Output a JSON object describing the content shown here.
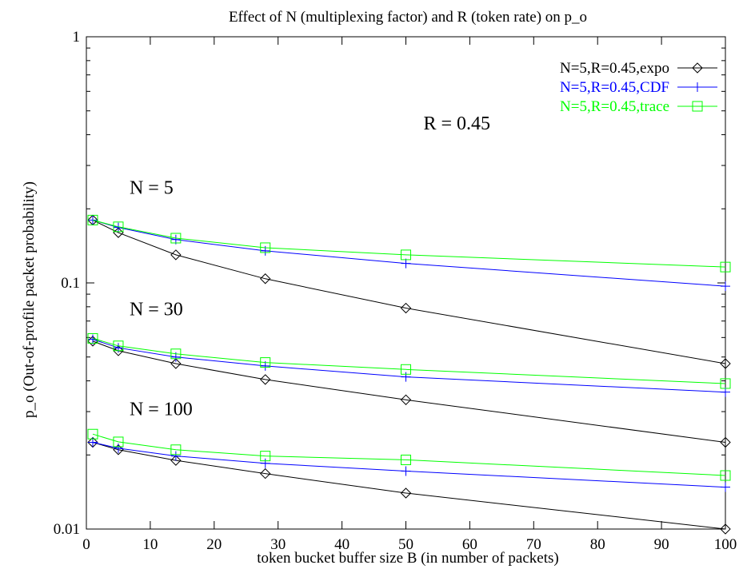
{
  "chart_data": {
    "type": "line",
    "title": "Effect of N (multiplexing factor) and R (token rate) on p_o",
    "xlabel": "token bucket buffer size B (in number of packets)",
    "ylabel": "p_o (Out-of-profile packet probability)",
    "xlim": [
      0,
      100
    ],
    "ylim": [
      0.01,
      1
    ],
    "yscale": "log",
    "xticks": [
      0,
      10,
      20,
      30,
      40,
      50,
      60,
      70,
      80,
      90,
      100
    ],
    "xtick_labels": [
      "0",
      "10",
      "20",
      "30",
      "40",
      "50",
      "60",
      "70",
      "80",
      "90",
      "100"
    ],
    "ytick_labels": [
      "0.01",
      "0.1",
      "1"
    ],
    "grid": false,
    "legend_position": "top-right",
    "legend": [
      {
        "label": "N=5,R=0.45,expo",
        "color": "#000000",
        "marker": "diamond"
      },
      {
        "label": "N=5,R=0.45,CDF",
        "color": "#0000ff",
        "marker": "plus"
      },
      {
        "label": "N=5,R=0.45,trace",
        "color": "#00ff00",
        "marker": "square"
      }
    ],
    "annotations": [
      {
        "text": "R = 0.45",
        "x": 52,
        "y": 0.42
      },
      {
        "text": "N = 5",
        "x": 6,
        "y": 0.23
      },
      {
        "text": "N = 30",
        "x": 6,
        "y": 0.074
      },
      {
        "text": "N = 100",
        "x": 6,
        "y": 0.029
      }
    ],
    "series": [
      {
        "group": "N = 5",
        "type": "expo",
        "color": "#000000",
        "marker": "diamond",
        "x": [
          1,
          5,
          14,
          28,
          50,
          100
        ],
        "y": [
          0.18,
          0.16,
          0.13,
          0.104,
          0.079,
          0.047
        ]
      },
      {
        "group": "N = 5",
        "type": "CDF",
        "color": "#0000ff",
        "marker": "plus",
        "x": [
          1,
          5,
          14,
          28,
          50,
          100
        ],
        "y": [
          0.18,
          0.168,
          0.15,
          0.135,
          0.12,
          0.097
        ]
      },
      {
        "group": "N = 5",
        "type": "trace",
        "color": "#00ff00",
        "marker": "square",
        "x": [
          1,
          5,
          14,
          28,
          50,
          100
        ],
        "y": [
          0.18,
          0.169,
          0.152,
          0.139,
          0.13,
          0.116
        ]
      },
      {
        "group": "N = 30",
        "type": "expo",
        "color": "#000000",
        "marker": "diamond",
        "x": [
          1,
          5,
          14,
          28,
          50,
          100
        ],
        "y": [
          0.058,
          0.053,
          0.047,
          0.0405,
          0.0335,
          0.0225
        ]
      },
      {
        "group": "N = 30",
        "type": "CDF",
        "color": "#0000ff",
        "marker": "plus",
        "x": [
          1,
          5,
          14,
          28,
          50,
          100
        ],
        "y": [
          0.059,
          0.0545,
          0.05,
          0.046,
          0.0415,
          0.036
        ]
      },
      {
        "group": "N = 30",
        "type": "trace",
        "color": "#00ff00",
        "marker": "square",
        "x": [
          1,
          5,
          14,
          28,
          50,
          100
        ],
        "y": [
          0.0595,
          0.0555,
          0.0515,
          0.0475,
          0.0445,
          0.039
        ]
      },
      {
        "group": "N = 100",
        "type": "expo",
        "color": "#000000",
        "marker": "diamond",
        "x": [
          1,
          5,
          14,
          28,
          50,
          100
        ],
        "y": [
          0.0225,
          0.021,
          0.019,
          0.0168,
          0.014,
          0.01
        ]
      },
      {
        "group": "N = 100",
        "type": "CDF",
        "color": "#0000ff",
        "marker": "plus",
        "x": [
          1,
          5,
          14,
          28,
          50,
          100
        ],
        "y": [
          0.0225,
          0.0213,
          0.0198,
          0.0185,
          0.0172,
          0.0148
        ]
      },
      {
        "group": "N = 100",
        "type": "trace",
        "color": "#00ff00",
        "marker": "square",
        "x": [
          1,
          5,
          14,
          28,
          50,
          100
        ],
        "y": [
          0.0243,
          0.0226,
          0.021,
          0.0198,
          0.0191,
          0.0165
        ]
      }
    ]
  }
}
